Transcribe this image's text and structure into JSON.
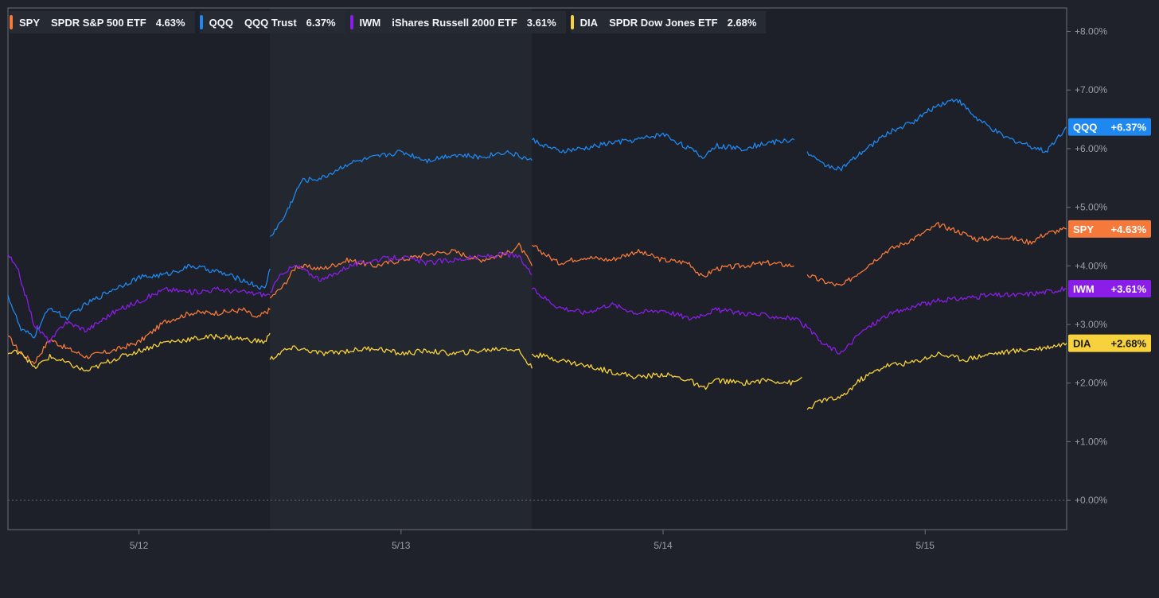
{
  "legend": [
    {
      "ticker": "SPY",
      "name": "SPDR S&P 500 ETF",
      "value": "4.63%",
      "color": "#f5793a"
    },
    {
      "ticker": "QQQ",
      "name": "QQQ Trust",
      "value": "6.37%",
      "color": "#1e88f0"
    },
    {
      "ticker": "IWM",
      "name": "iShares Russell 2000 ETF",
      "value": "3.61%",
      "color": "#8a1de8"
    },
    {
      "ticker": "DIA",
      "name": "SPDR Dow Jones ETF",
      "value": "2.68%",
      "color": "#f7d23c"
    }
  ],
  "chart_data": {
    "type": "line",
    "title": "",
    "xlabel": "",
    "ylabel": "",
    "ylim": [
      -0.5,
      8.4
    ],
    "x_ticks": [
      {
        "label": "5/12",
        "x": 1.0
      },
      {
        "label": "5/13",
        "x": 2.0
      },
      {
        "label": "5/14",
        "x": 3.0
      },
      {
        "label": "5/15",
        "x": 4.0
      }
    ],
    "y_ticks": [
      "+0.00%",
      "+1.00%",
      "+2.00%",
      "+3.00%",
      "+4.00%",
      "+5.00%",
      "+6.00%",
      "+7.00%",
      "+8.00%"
    ],
    "y_tick_values": [
      0,
      1,
      2,
      3,
      4,
      5,
      6,
      7,
      8
    ],
    "xlim": [
      0.5,
      4.54
    ],
    "session_shading": [
      [
        1.5,
        2.5
      ]
    ],
    "series": [
      {
        "name": "SPY",
        "color": "#f5793a",
        "end_label": "SPY",
        "end_value": "+4.63%",
        "last": 4.63,
        "segments": [
          [
            [
              0.5,
              2.8
            ],
            [
              0.55,
              2.5
            ],
            [
              0.6,
              2.35
            ],
            [
              0.66,
              2.75
            ],
            [
              0.72,
              2.6
            ],
            [
              0.8,
              2.45
            ],
            [
              0.9,
              2.55
            ],
            [
              1.0,
              2.7
            ],
            [
              1.1,
              3.05
            ],
            [
              1.2,
              3.2
            ],
            [
              1.3,
              3.2
            ],
            [
              1.4,
              3.25
            ],
            [
              1.45,
              3.1
            ],
            [
              1.48,
              3.2
            ],
            [
              1.5,
              3.25
            ]
          ],
          [
            [
              1.5,
              3.45
            ],
            [
              1.55,
              3.65
            ],
            [
              1.6,
              4.0
            ],
            [
              1.7,
              3.95
            ],
            [
              1.8,
              4.1
            ],
            [
              1.9,
              4.0
            ],
            [
              2.0,
              4.1
            ],
            [
              2.1,
              4.2
            ],
            [
              2.2,
              4.25
            ],
            [
              2.3,
              4.1
            ],
            [
              2.4,
              4.2
            ],
            [
              2.45,
              4.35
            ],
            [
              2.5,
              4.0
            ]
          ],
          [
            [
              2.5,
              4.35
            ],
            [
              2.6,
              4.05
            ],
            [
              2.7,
              4.15
            ],
            [
              2.8,
              4.1
            ],
            [
              2.9,
              4.25
            ],
            [
              3.0,
              4.1
            ],
            [
              3.1,
              4.05
            ],
            [
              3.15,
              3.8
            ],
            [
              3.2,
              3.95
            ],
            [
              3.3,
              4.0
            ],
            [
              3.4,
              4.05
            ],
            [
              3.5,
              4.0
            ]
          ],
          [
            [
              3.55,
              3.85
            ],
            [
              3.6,
              3.75
            ],
            [
              3.68,
              3.65
            ],
            [
              3.75,
              3.9
            ],
            [
              3.85,
              4.25
            ],
            [
              3.95,
              4.45
            ],
            [
              4.05,
              4.7
            ],
            [
              4.12,
              4.6
            ],
            [
              4.2,
              4.45
            ],
            [
              4.3,
              4.5
            ],
            [
              4.4,
              4.4
            ],
            [
              4.46,
              4.55
            ],
            [
              4.54,
              4.63
            ]
          ]
        ]
      },
      {
        "name": "QQQ",
        "color": "#1e88f0",
        "end_label": "QQQ",
        "end_value": "+6.37%",
        "last": 6.37,
        "segments": [
          [
            [
              0.5,
              3.5
            ],
            [
              0.55,
              2.9
            ],
            [
              0.6,
              2.8
            ],
            [
              0.66,
              3.3
            ],
            [
              0.72,
              3.1
            ],
            [
              0.8,
              3.35
            ],
            [
              0.9,
              3.6
            ],
            [
              1.0,
              3.8
            ],
            [
              1.1,
              3.85
            ],
            [
              1.2,
              4.0
            ],
            [
              1.3,
              3.9
            ],
            [
              1.4,
              3.75
            ],
            [
              1.48,
              3.6
            ],
            [
              1.5,
              3.95
            ]
          ],
          [
            [
              1.5,
              4.5
            ],
            [
              1.55,
              4.8
            ],
            [
              1.62,
              5.45
            ],
            [
              1.7,
              5.5
            ],
            [
              1.8,
              5.75
            ],
            [
              1.9,
              5.85
            ],
            [
              2.0,
              5.95
            ],
            [
              2.1,
              5.8
            ],
            [
              2.2,
              5.9
            ],
            [
              2.3,
              5.85
            ],
            [
              2.4,
              5.95
            ],
            [
              2.5,
              5.8
            ]
          ],
          [
            [
              2.5,
              6.15
            ],
            [
              2.6,
              5.95
            ],
            [
              2.7,
              6.0
            ],
            [
              2.8,
              6.1
            ],
            [
              2.9,
              6.15
            ],
            [
              3.0,
              6.25
            ],
            [
              3.1,
              6.0
            ],
            [
              3.15,
              5.85
            ],
            [
              3.2,
              6.05
            ],
            [
              3.3,
              6.0
            ],
            [
              3.4,
              6.1
            ],
            [
              3.5,
              6.15
            ]
          ],
          [
            [
              3.55,
              5.95
            ],
            [
              3.6,
              5.75
            ],
            [
              3.68,
              5.65
            ],
            [
              3.75,
              5.9
            ],
            [
              3.85,
              6.25
            ],
            [
              3.95,
              6.45
            ],
            [
              4.05,
              6.75
            ],
            [
              4.12,
              6.85
            ],
            [
              4.2,
              6.5
            ],
            [
              4.3,
              6.2
            ],
            [
              4.4,
              6.05
            ],
            [
              4.46,
              5.95
            ],
            [
              4.54,
              6.37
            ]
          ]
        ]
      },
      {
        "name": "IWM",
        "color": "#8a1de8",
        "end_label": "IWM",
        "end_value": "+3.61%",
        "last": 3.61,
        "segments": [
          [
            [
              0.5,
              4.2
            ],
            [
              0.54,
              3.9
            ],
            [
              0.6,
              3.0
            ],
            [
              0.66,
              2.7
            ],
            [
              0.72,
              3.05
            ],
            [
              0.8,
              2.9
            ],
            [
              0.9,
              3.2
            ],
            [
              1.0,
              3.4
            ],
            [
              1.1,
              3.6
            ],
            [
              1.2,
              3.55
            ],
            [
              1.3,
              3.6
            ],
            [
              1.4,
              3.55
            ],
            [
              1.5,
              3.5
            ]
          ],
          [
            [
              1.5,
              3.55
            ],
            [
              1.55,
              3.9
            ],
            [
              1.6,
              4.0
            ],
            [
              1.7,
              3.75
            ],
            [
              1.8,
              4.0
            ],
            [
              1.9,
              4.1
            ],
            [
              2.0,
              4.15
            ],
            [
              2.1,
              4.05
            ],
            [
              2.2,
              4.1
            ],
            [
              2.3,
              4.15
            ],
            [
              2.4,
              4.2
            ],
            [
              2.45,
              4.15
            ],
            [
              2.5,
              3.85
            ]
          ],
          [
            [
              2.5,
              3.6
            ],
            [
              2.6,
              3.3
            ],
            [
              2.7,
              3.2
            ],
            [
              2.8,
              3.35
            ],
            [
              2.9,
              3.2
            ],
            [
              3.0,
              3.25
            ],
            [
              3.1,
              3.1
            ],
            [
              3.2,
              3.25
            ],
            [
              3.3,
              3.2
            ],
            [
              3.4,
              3.15
            ],
            [
              3.5,
              3.1
            ],
            [
              3.55,
              2.95
            ]
          ],
          [
            [
              3.55,
              2.95
            ],
            [
              3.6,
              2.7
            ],
            [
              3.68,
              2.5
            ],
            [
              3.75,
              2.85
            ],
            [
              3.85,
              3.15
            ],
            [
              3.95,
              3.3
            ],
            [
              4.05,
              3.4
            ],
            [
              4.15,
              3.45
            ],
            [
              4.25,
              3.5
            ],
            [
              4.35,
              3.5
            ],
            [
              4.45,
              3.55
            ],
            [
              4.54,
              3.61
            ]
          ]
        ]
      },
      {
        "name": "DIA",
        "color": "#f7d23c",
        "end_label": "DIA",
        "end_value": "+2.68%",
        "last": 2.68,
        "segments": [
          [
            [
              0.5,
              2.5
            ],
            [
              0.55,
              2.55
            ],
            [
              0.6,
              2.25
            ],
            [
              0.66,
              2.45
            ],
            [
              0.72,
              2.35
            ],
            [
              0.8,
              2.2
            ],
            [
              0.9,
              2.4
            ],
            [
              1.0,
              2.55
            ],
            [
              1.1,
              2.7
            ],
            [
              1.2,
              2.75
            ],
            [
              1.3,
              2.8
            ],
            [
              1.4,
              2.75
            ],
            [
              1.48,
              2.7
            ],
            [
              1.5,
              2.85
            ]
          ],
          [
            [
              1.5,
              2.4
            ],
            [
              1.55,
              2.55
            ],
            [
              1.6,
              2.6
            ],
            [
              1.7,
              2.5
            ],
            [
              1.8,
              2.55
            ],
            [
              1.9,
              2.6
            ],
            [
              2.0,
              2.5
            ],
            [
              2.1,
              2.55
            ],
            [
              2.2,
              2.5
            ],
            [
              2.3,
              2.55
            ],
            [
              2.4,
              2.6
            ],
            [
              2.45,
              2.55
            ],
            [
              2.5,
              2.25
            ]
          ],
          [
            [
              2.5,
              2.5
            ],
            [
              2.6,
              2.4
            ],
            [
              2.7,
              2.3
            ],
            [
              2.8,
              2.2
            ],
            [
              2.9,
              2.1
            ],
            [
              3.0,
              2.15
            ],
            [
              3.1,
              2.05
            ],
            [
              3.15,
              1.9
            ],
            [
              3.2,
              2.05
            ],
            [
              3.3,
              2.0
            ],
            [
              3.4,
              2.05
            ],
            [
              3.5,
              2.0
            ],
            [
              3.53,
              2.1
            ]
          ],
          [
            [
              3.55,
              1.55
            ],
            [
              3.6,
              1.7
            ],
            [
              3.68,
              1.75
            ],
            [
              3.75,
              2.05
            ],
            [
              3.85,
              2.3
            ],
            [
              3.95,
              2.35
            ],
            [
              4.05,
              2.5
            ],
            [
              4.15,
              2.4
            ],
            [
              4.25,
              2.5
            ],
            [
              4.35,
              2.55
            ],
            [
              4.45,
              2.6
            ],
            [
              4.54,
              2.68
            ]
          ]
        ]
      }
    ]
  }
}
